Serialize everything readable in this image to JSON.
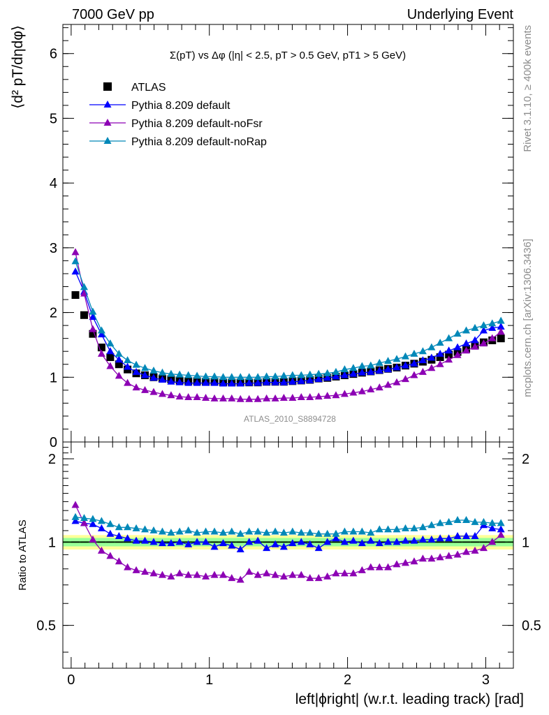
{
  "header": {
    "left": "7000 GeV pp",
    "right": "Underlying Event"
  },
  "side_labels": {
    "rivet": "Rivet 3.1.10, ≥ 400k events",
    "mcplots": "mcplots.cern.ch [arXiv:1306.3436]"
  },
  "chart_data": [
    {
      "type": "scatter",
      "title": "Σ(pT) vs Δφ (|η| < 2.5, pT > 0.5 GeV, pT1 > 5 GeV)",
      "analysis": "ATLAS_2010_S8894728",
      "ylabel": "⟨d² pT/dηdφ⟩",
      "xlim": [
        -0.06,
        3.2
      ],
      "ylim": [
        0,
        6.45
      ],
      "yticks": [
        0,
        1,
        2,
        3,
        4,
        5,
        6
      ],
      "xticks": [
        0,
        1,
        2,
        3
      ],
      "legend_position": "top-left",
      "x": [
        0.031,
        0.094,
        0.157,
        0.22,
        0.283,
        0.346,
        0.408,
        0.471,
        0.534,
        0.597,
        0.66,
        0.723,
        0.785,
        0.848,
        0.911,
        0.974,
        1.037,
        1.1,
        1.162,
        1.225,
        1.288,
        1.351,
        1.414,
        1.477,
        1.539,
        1.602,
        1.665,
        1.728,
        1.791,
        1.854,
        1.916,
        1.979,
        2.042,
        2.105,
        2.168,
        2.231,
        2.293,
        2.356,
        2.419,
        2.482,
        2.545,
        2.608,
        2.67,
        2.733,
        2.796,
        2.859,
        2.922,
        2.985,
        3.047,
        3.11
      ],
      "series": [
        {
          "name": "ATLAS",
          "color": "#000000",
          "marker": "square",
          "values": [
            2.27,
            1.96,
            1.67,
            1.46,
            1.31,
            1.2,
            1.12,
            1.06,
            1.03,
            1.0,
            0.98,
            0.97,
            0.95,
            0.94,
            0.94,
            0.93,
            0.93,
            0.92,
            0.92,
            0.92,
            0.92,
            0.92,
            0.93,
            0.93,
            0.93,
            0.94,
            0.95,
            0.96,
            0.98,
            0.99,
            1.01,
            1.03,
            1.05,
            1.07,
            1.09,
            1.11,
            1.13,
            1.15,
            1.18,
            1.21,
            1.24,
            1.27,
            1.31,
            1.35,
            1.39,
            1.44,
            1.49,
            1.54,
            1.57,
            1.6
          ]
        },
        {
          "name": "Pythia 8.209 default",
          "color": "#0000ff",
          "marker": "triangle",
          "values": [
            2.63,
            2.32,
            1.93,
            1.66,
            1.4,
            1.27,
            1.16,
            1.08,
            1.03,
            0.99,
            0.96,
            0.93,
            0.92,
            0.91,
            0.91,
            0.91,
            0.91,
            0.9,
            0.9,
            0.9,
            0.91,
            0.91,
            0.92,
            0.92,
            0.92,
            0.93,
            0.94,
            0.95,
            0.97,
            0.99,
            1.01,
            1.03,
            1.05,
            1.07,
            1.08,
            1.1,
            1.12,
            1.15,
            1.18,
            1.21,
            1.26,
            1.3,
            1.36,
            1.41,
            1.46,
            1.52,
            1.57,
            1.72,
            1.76,
            1.78
          ]
        },
        {
          "name": "Pythia 8.209 default-noFsr",
          "color": "#8c00b4",
          "marker": "triangle",
          "values": [
            2.93,
            2.29,
            1.74,
            1.36,
            1.17,
            1.02,
            0.91,
            0.84,
            0.8,
            0.77,
            0.74,
            0.72,
            0.7,
            0.69,
            0.69,
            0.68,
            0.67,
            0.67,
            0.67,
            0.66,
            0.66,
            0.66,
            0.67,
            0.67,
            0.68,
            0.68,
            0.69,
            0.69,
            0.7,
            0.71,
            0.72,
            0.74,
            0.76,
            0.78,
            0.81,
            0.84,
            0.88,
            0.92,
            0.97,
            1.03,
            1.08,
            1.14,
            1.2,
            1.27,
            1.34,
            1.41,
            1.47,
            1.52,
            1.6,
            1.7
          ]
        },
        {
          "name": "Pythia 8.209 default-noRap",
          "color": "#0088b8",
          "marker": "triangle",
          "values": [
            2.79,
            2.39,
            2.01,
            1.72,
            1.52,
            1.36,
            1.26,
            1.19,
            1.14,
            1.1,
            1.07,
            1.05,
            1.04,
            1.03,
            1.02,
            1.01,
            1.01,
            1.0,
            1.0,
            1.0,
            1.0,
            1.0,
            1.01,
            1.01,
            1.02,
            1.03,
            1.03,
            1.04,
            1.05,
            1.06,
            1.08,
            1.12,
            1.14,
            1.17,
            1.18,
            1.22,
            1.25,
            1.28,
            1.32,
            1.36,
            1.4,
            1.46,
            1.53,
            1.6,
            1.67,
            1.72,
            1.76,
            1.8,
            1.83,
            1.87
          ]
        }
      ]
    },
    {
      "type": "scatter",
      "ylabel": "Ratio to ATLAS",
      "xlabel": "left|ϕright| (w.r.t. leading track) [rad]",
      "xlim": [
        -0.06,
        3.2
      ],
      "ylim": [
        0.35,
        2.3
      ],
      "log_y": true,
      "yticks": [
        0.5,
        1,
        2
      ],
      "xticks": [
        0,
        1,
        2,
        3
      ],
      "reference_band_colors": [
        "#ffff99",
        "#99ff99"
      ],
      "reference_line_color": "#008000",
      "series": [
        {
          "name": "Pythia 8.209 default",
          "color": "#0000ff",
          "values": [
            1.19,
            1.17,
            1.16,
            1.12,
            1.07,
            1.05,
            1.03,
            1.01,
            1.01,
            1.0,
            0.99,
            0.99,
            1.0,
            0.98,
            1.0,
            1.0,
            0.96,
            0.99,
            0.97,
            0.94,
            1.0,
            1.01,
            0.95,
            0.98,
            0.96,
            0.99,
            1.0,
            0.98,
            0.95,
            1.0,
            1.03,
            1.0,
            1.01,
            0.99,
            1.01,
            0.99,
            1.0,
            1.0,
            1.01,
            1.01,
            1.02,
            1.02,
            1.03,
            1.03,
            1.05,
            1.05,
            1.05,
            1.15,
            1.12,
            1.11
          ]
        },
        {
          "name": "Pythia 8.209 default-noFsr",
          "color": "#8c00b4",
          "values": [
            1.36,
            1.17,
            1.02,
            0.93,
            0.89,
            0.85,
            0.81,
            0.79,
            0.78,
            0.77,
            0.76,
            0.75,
            0.77,
            0.76,
            0.76,
            0.75,
            0.76,
            0.76,
            0.74,
            0.73,
            0.78,
            0.76,
            0.77,
            0.76,
            0.75,
            0.76,
            0.76,
            0.74,
            0.74,
            0.75,
            0.77,
            0.77,
            0.77,
            0.79,
            0.81,
            0.81,
            0.81,
            0.83,
            0.84,
            0.85,
            0.87,
            0.87,
            0.88,
            0.89,
            0.9,
            0.92,
            0.93,
            0.95,
            1.0,
            1.06
          ]
        },
        {
          "name": "Pythia 8.209 default-noRap",
          "color": "#0088b8",
          "values": [
            1.23,
            1.22,
            1.21,
            1.19,
            1.16,
            1.13,
            1.13,
            1.12,
            1.11,
            1.1,
            1.09,
            1.08,
            1.09,
            1.1,
            1.08,
            1.09,
            1.09,
            1.08,
            1.09,
            1.07,
            1.09,
            1.09,
            1.08,
            1.09,
            1.08,
            1.09,
            1.08,
            1.08,
            1.07,
            1.07,
            1.07,
            1.09,
            1.09,
            1.09,
            1.08,
            1.11,
            1.11,
            1.11,
            1.12,
            1.12,
            1.13,
            1.15,
            1.17,
            1.18,
            1.2,
            1.2,
            1.18,
            1.18,
            1.17,
            1.17
          ]
        }
      ]
    }
  ],
  "legend": [
    {
      "label": "ATLAS"
    },
    {
      "label": "Pythia 8.209 default"
    },
    {
      "label": "Pythia 8.209 default-noFsr"
    },
    {
      "label": "Pythia 8.209 default-noRap"
    }
  ]
}
